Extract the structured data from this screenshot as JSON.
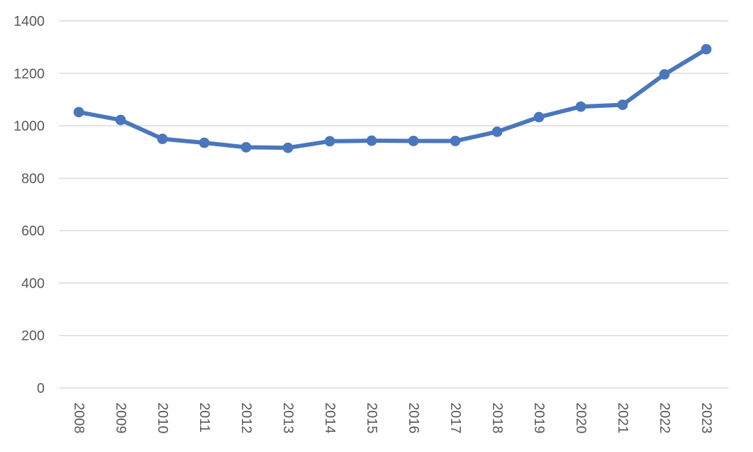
{
  "chart_data": {
    "type": "line",
    "title": "",
    "xlabel": "",
    "ylabel": "",
    "categories": [
      "2008",
      "2009",
      "2010",
      "2011",
      "2012",
      "2013",
      "2014",
      "2015",
      "2016",
      "2017",
      "2018",
      "2019",
      "2020",
      "2021",
      "2022",
      "2023"
    ],
    "series": [
      {
        "values": [
          1052,
          1022,
          950,
          935,
          918,
          916,
          941,
          943,
          942,
          942,
          977,
          1033,
          1073,
          1080,
          1196,
          1292
        ]
      }
    ],
    "ylim": [
      0,
      1400
    ],
    "yticks": [
      0,
      200,
      400,
      600,
      800,
      1000,
      1200,
      1400
    ],
    "grid": true,
    "legend": "none",
    "colors": {
      "series": "#4a76bd",
      "grid": "#d9d9d9",
      "text": "#595959"
    }
  }
}
